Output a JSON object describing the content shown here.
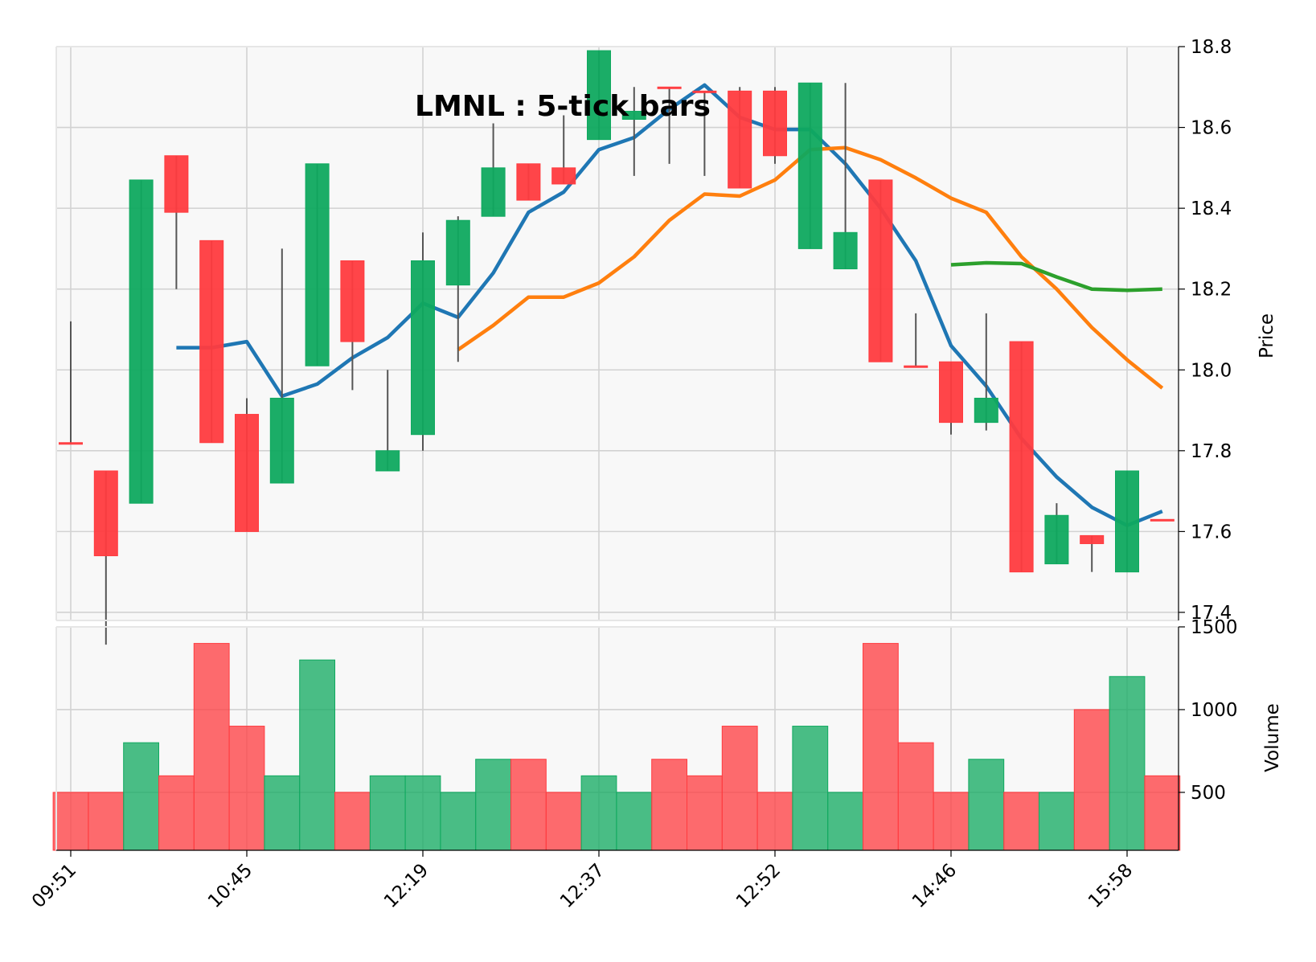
{
  "chart_data": {
    "type": "candlestick",
    "title": "LMNL : 5-tick bars",
    "ylabel": "Price",
    "volume_label": "Volume",
    "ylim": [
      17.38,
      18.8
    ],
    "price_ticks": [
      "17.4",
      "17.6",
      "17.8",
      "18.0",
      "18.2",
      "18.4",
      "18.6",
      "18.8"
    ],
    "volume_ylim": [
      150,
      1500
    ],
    "volume_ticks": [
      "500",
      "1000",
      "1500"
    ],
    "x_ticks": [
      {
        "index": 0,
        "label": "09:51"
      },
      {
        "index": 5,
        "label": "10:45"
      },
      {
        "index": 10,
        "label": "12:19"
      },
      {
        "index": 15,
        "label": "12:37"
      },
      {
        "index": 20,
        "label": "12:52"
      },
      {
        "index": 25,
        "label": "14:46"
      },
      {
        "index": 30,
        "label": "15:58"
      }
    ],
    "colors": {
      "up": "#0fa95f",
      "down": "#ff3b3f",
      "ma_short": "#1f77b4",
      "ma_mid": "#ff7f0e",
      "ma_long": "#2ca02c"
    },
    "candles": [
      {
        "o": 17.82,
        "h": 18.12,
        "l": 17.82,
        "c": 17.82,
        "v": 500,
        "up": false
      },
      {
        "o": 17.75,
        "h": 17.75,
        "l": 17.32,
        "c": 17.54,
        "v": 500,
        "up": false
      },
      {
        "o": 17.67,
        "h": 18.47,
        "l": 17.67,
        "c": 18.47,
        "v": 800,
        "up": true
      },
      {
        "o": 18.53,
        "h": 18.53,
        "l": 18.2,
        "c": 18.39,
        "v": 600,
        "up": false
      },
      {
        "o": 18.32,
        "h": 18.32,
        "l": 17.82,
        "c": 17.82,
        "v": 1400,
        "up": false
      },
      {
        "o": 17.89,
        "h": 17.93,
        "l": 17.6,
        "c": 17.6,
        "v": 900,
        "up": false
      },
      {
        "o": 17.72,
        "h": 18.3,
        "l": 17.72,
        "c": 17.93,
        "v": 600,
        "up": true
      },
      {
        "o": 18.01,
        "h": 18.51,
        "l": 18.01,
        "c": 18.51,
        "v": 1300,
        "up": true
      },
      {
        "o": 18.27,
        "h": 18.27,
        "l": 17.95,
        "c": 18.07,
        "v": 500,
        "up": false
      },
      {
        "o": 17.75,
        "h": 18.0,
        "l": 17.75,
        "c": 17.8,
        "v": 600,
        "up": true
      },
      {
        "o": 17.84,
        "h": 18.34,
        "l": 17.8,
        "c": 18.27,
        "v": 600,
        "up": true
      },
      {
        "o": 18.21,
        "h": 18.38,
        "l": 18.02,
        "c": 18.37,
        "v": 500,
        "up": true
      },
      {
        "o": 18.38,
        "h": 18.61,
        "l": 18.38,
        "c": 18.5,
        "v": 700,
        "up": true
      },
      {
        "o": 18.51,
        "h": 18.51,
        "l": 18.42,
        "c": 18.42,
        "v": 700,
        "up": false
      },
      {
        "o": 18.5,
        "h": 18.63,
        "l": 18.46,
        "c": 18.46,
        "v": 500,
        "up": false
      },
      {
        "o": 18.57,
        "h": 18.79,
        "l": 18.57,
        "c": 18.79,
        "v": 600,
        "up": true
      },
      {
        "o": 18.62,
        "h": 18.7,
        "l": 18.48,
        "c": 18.64,
        "v": 500,
        "up": true
      },
      {
        "o": 18.7,
        "h": 18.7,
        "l": 18.51,
        "c": 18.7,
        "v": 700,
        "up": false
      },
      {
        "o": 18.69,
        "h": 18.69,
        "l": 18.48,
        "c": 18.69,
        "v": 600,
        "up": false
      },
      {
        "o": 18.69,
        "h": 18.7,
        "l": 18.45,
        "c": 18.45,
        "v": 900,
        "up": false
      },
      {
        "o": 18.69,
        "h": 18.7,
        "l": 18.51,
        "c": 18.53,
        "v": 500,
        "up": false
      },
      {
        "o": 18.3,
        "h": 18.71,
        "l": 18.3,
        "c": 18.71,
        "v": 900,
        "up": true
      },
      {
        "o": 18.25,
        "h": 18.71,
        "l": 18.25,
        "c": 18.34,
        "v": 500,
        "up": true
      },
      {
        "o": 18.47,
        "h": 18.47,
        "l": 18.02,
        "c": 18.02,
        "v": 1400,
        "up": false
      },
      {
        "o": 18.01,
        "h": 18.14,
        "l": 18.01,
        "c": 18.01,
        "v": 800,
        "up": false
      },
      {
        "o": 18.02,
        "h": 18.02,
        "l": 17.84,
        "c": 17.87,
        "v": 500,
        "up": false
      },
      {
        "o": 17.87,
        "h": 18.14,
        "l": 17.85,
        "c": 17.93,
        "v": 700,
        "up": true
      },
      {
        "o": 18.07,
        "h": 18.07,
        "l": 17.5,
        "c": 17.5,
        "v": 500,
        "up": false
      },
      {
        "o": 17.52,
        "h": 17.67,
        "l": 17.52,
        "c": 17.64,
        "v": 500,
        "up": true
      },
      {
        "o": 17.59,
        "h": 17.59,
        "l": 17.5,
        "c": 17.57,
        "v": 1000,
        "up": false
      },
      {
        "o": 17.5,
        "h": 17.75,
        "l": 17.5,
        "c": 17.75,
        "v": 1200,
        "up": true
      },
      {
        "o": 17.63,
        "h": 17.63,
        "l": 17.63,
        "c": 17.63,
        "v": 600,
        "up": false
      }
    ],
    "moving_averages": [
      {
        "key": "ma_short",
        "start": 3,
        "values": [
          18.055,
          18.055,
          18.07,
          17.935,
          17.965,
          18.03,
          18.08,
          18.165,
          18.13,
          18.24,
          18.39,
          18.44,
          18.545,
          18.575,
          18.645,
          18.705,
          18.625,
          18.595,
          18.595,
          18.51,
          18.4,
          18.27,
          18.06,
          17.96,
          17.83,
          17.735,
          17.66,
          17.615,
          17.65
        ]
      },
      {
        "key": "ma_mid",
        "start": 11,
        "values": [
          18.05,
          18.11,
          18.18,
          18.18,
          18.215,
          18.28,
          18.37,
          18.435,
          18.43,
          18.47,
          18.545,
          18.55,
          18.52,
          18.475,
          18.425,
          18.39,
          18.28,
          18.2,
          18.105,
          18.025,
          17.955
        ]
      },
      {
        "key": "ma_long",
        "start": 25,
        "values": [
          18.26,
          18.265,
          18.263,
          18.23,
          18.2,
          18.197,
          18.2
        ]
      }
    ]
  }
}
